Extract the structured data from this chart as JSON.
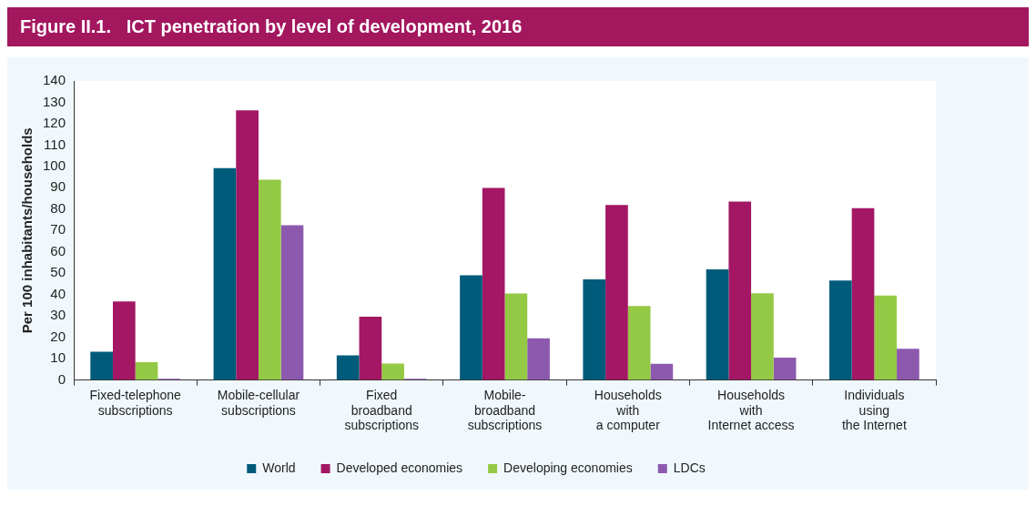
{
  "chart_data": {
    "type": "bar",
    "title": "Figure II.1.   ICT penetration by level of development, 2016",
    "ylabel": "Per 100 inhabitants/households",
    "categories": [
      "Fixed-telephone\nsubscriptions",
      "Mobile-cellular\nsubscriptions",
      "Fixed\nbroadband\nsubscriptions",
      "Mobile-\nbroadband\nsubscriptions",
      "Households\nwith\na computer",
      "Households\nwith\nInternet access",
      "Individuals\nusing\nthe Internet"
    ],
    "series": [
      {
        "name": "World",
        "color": "#005b7a",
        "values": [
          13.3,
          99.2,
          11.5,
          49.0,
          47.1,
          51.8,
          46.6
        ]
      },
      {
        "name": "Developed economies",
        "color": "#a31764",
        "values": [
          36.8,
          126.3,
          29.7,
          89.9,
          81.9,
          83.5,
          80.5
        ]
      },
      {
        "name": "Developing economies",
        "color": "#94c945",
        "values": [
          8.4,
          93.8,
          7.7,
          40.5,
          34.7,
          40.6,
          39.6
        ]
      },
      {
        "name": "LDCs",
        "color": "#8d59ae",
        "values": [
          0.6,
          72.5,
          0.6,
          19.5,
          7.6,
          10.5,
          14.6
        ]
      }
    ],
    "ylim": [
      0,
      140
    ],
    "yticks": [
      0,
      10,
      20,
      30,
      40,
      50,
      60,
      70,
      80,
      90,
      100,
      110,
      120,
      130,
      140
    ],
    "grid": false,
    "legend": "bottom"
  }
}
